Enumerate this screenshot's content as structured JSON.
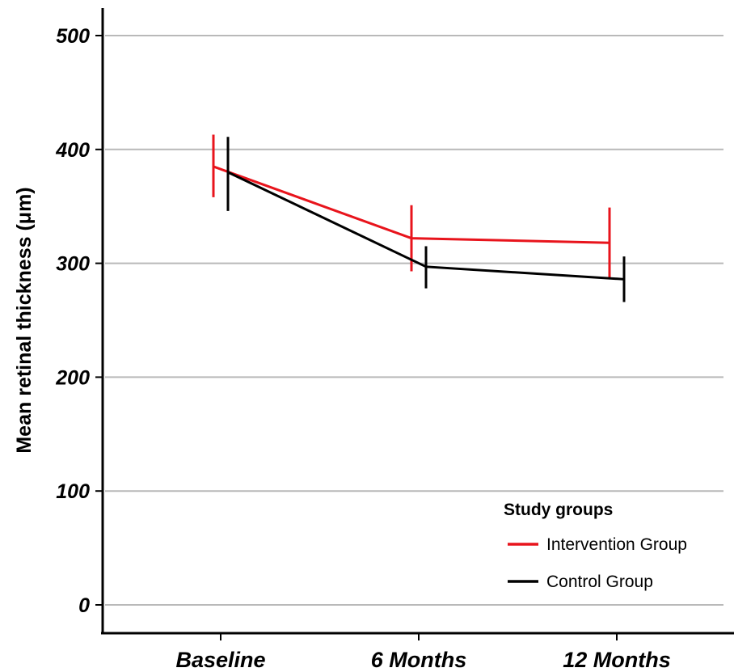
{
  "chart_data": {
    "type": "line",
    "categories": [
      "Baseline",
      "6 Months",
      "12 Months"
    ],
    "ylabel": "Mean retinal thickness (μm)",
    "ylim": [
      0,
      500
    ],
    "yticks": [
      0,
      100,
      200,
      300,
      400,
      500
    ],
    "grid": "horizontal",
    "legend": {
      "title": "Study groups",
      "placement": "bottom-right"
    },
    "series": [
      {
        "name": "Intervention Group",
        "color": "#e8141c",
        "values": [
          385,
          322,
          318
        ],
        "error_low": [
          358,
          293,
          287
        ],
        "error_high": [
          413,
          351,
          349
        ]
      },
      {
        "name": "Control Group",
        "color": "#000000",
        "values": [
          380,
          297,
          286
        ],
        "error_low": [
          346,
          278,
          266
        ],
        "error_high": [
          411,
          315,
          306
        ]
      }
    ]
  }
}
